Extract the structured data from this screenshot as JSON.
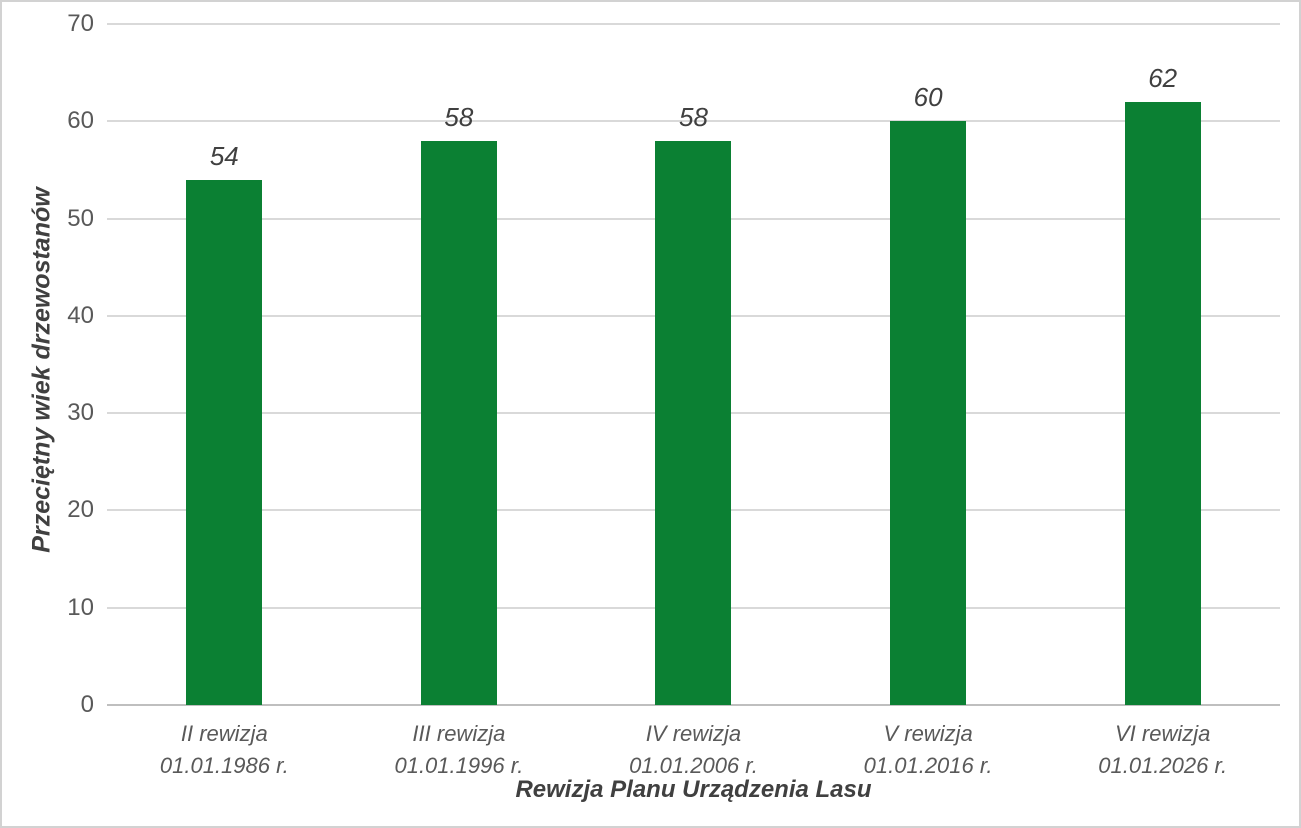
{
  "chart_data": {
    "type": "bar",
    "title": "",
    "xlabel": "Rewizja Planu Urządzenia Lasu",
    "ylabel": "Przeciętny wiek drzewostanów",
    "categories": [
      "II rewizja\n01.01.1986 r.",
      "III rewizja\n01.01.1996 r.",
      "IV rewizja\n01.01.2006 r.",
      "V rewizja\n01.01.2016 r.",
      "VI rewizja\n01.01.2026 r."
    ],
    "values": [
      54,
      58,
      58,
      60,
      62
    ],
    "ylim": [
      0,
      70
    ],
    "yticks": [
      0,
      10,
      20,
      30,
      40,
      50,
      60,
      70
    ],
    "grid": true,
    "legend_position": "none",
    "bar_color": "#0b8033",
    "gridline_color": "#d9d9d9",
    "axis_line_color": "#bfbfbf",
    "tick_label_color": "#595959",
    "data_label_color": "#404040"
  }
}
